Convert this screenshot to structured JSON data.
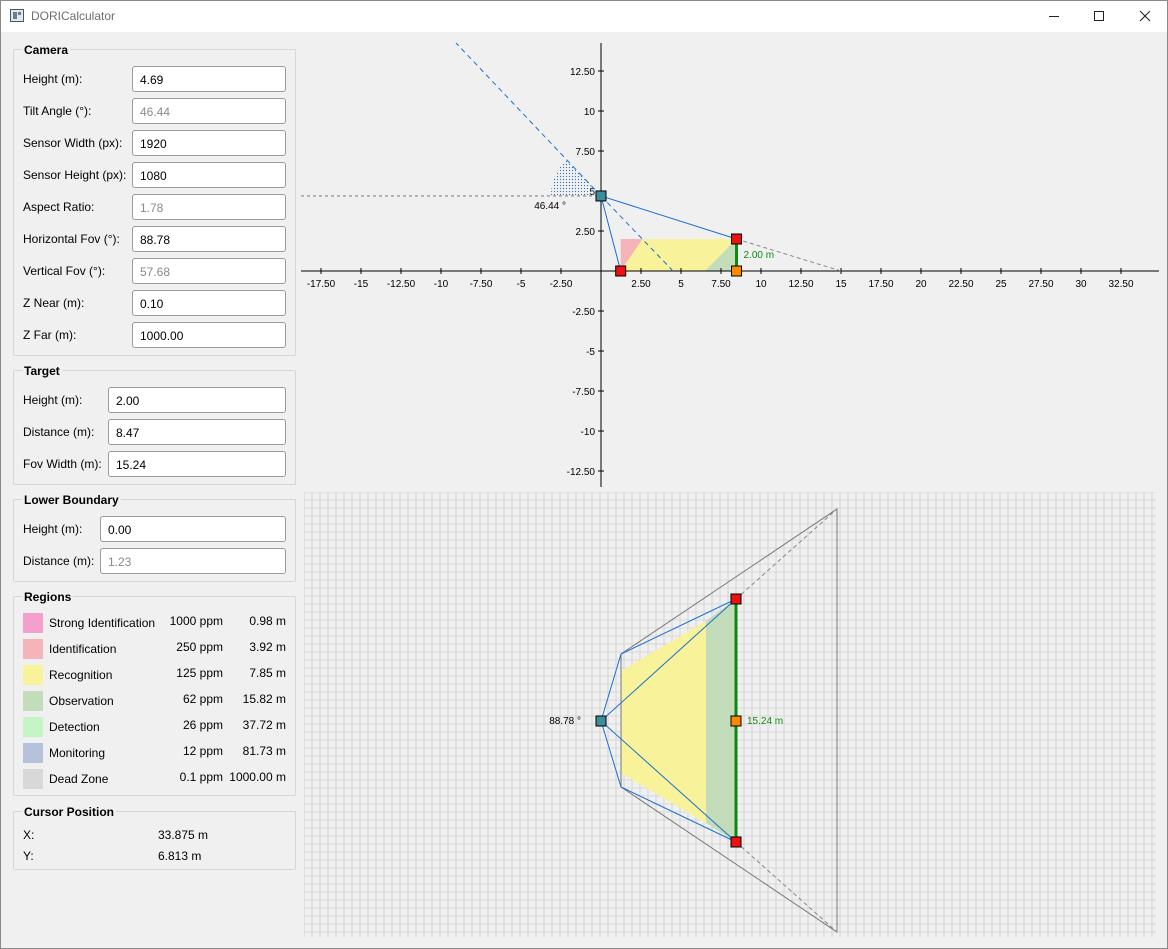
{
  "window": {
    "title": "DORICalculator"
  },
  "camera": {
    "title": "Camera",
    "fields": [
      {
        "label": "Height (m):",
        "value": "4.69",
        "readonly": false
      },
      {
        "label": "Tilt Angle (°):",
        "value": "46.44",
        "readonly": true
      },
      {
        "label": "Sensor Width (px):",
        "value": "1920",
        "readonly": false
      },
      {
        "label": "Sensor Height (px):",
        "value": "1080",
        "readonly": false
      },
      {
        "label": "Aspect Ratio:",
        "value": "1.78",
        "readonly": true
      },
      {
        "label": "Horizontal Fov (°):",
        "value": "88.78",
        "readonly": false
      },
      {
        "label": "Vertical Fov (°):",
        "value": "57.68",
        "readonly": true
      },
      {
        "label": "Z Near (m):",
        "value": "0.10",
        "readonly": false
      },
      {
        "label": "Z Far (m):",
        "value": "1000.00",
        "readonly": false
      }
    ]
  },
  "target": {
    "title": "Target",
    "fields": [
      {
        "label": "Height (m):",
        "value": "2.00",
        "readonly": false
      },
      {
        "label": "Distance (m):",
        "value": "8.47",
        "readonly": false
      },
      {
        "label": "Fov Width (m):",
        "value": "15.24",
        "readonly": false
      }
    ]
  },
  "lower_boundary": {
    "title": "Lower Boundary",
    "fields": [
      {
        "label": "Height (m):",
        "value": "0.00",
        "readonly": false
      },
      {
        "label": "Distance (m):",
        "value": "1.23",
        "readonly": true
      }
    ]
  },
  "regions": {
    "title": "Regions",
    "items": [
      {
        "name": "Strong Identification",
        "ppm": "1000 ppm",
        "dist": "0.98 m",
        "color": "#f5a0cc"
      },
      {
        "name": "Identification",
        "ppm": "250 ppm",
        "dist": "3.92 m",
        "color": "#f5b5b8"
      },
      {
        "name": "Recognition",
        "ppm": "125 ppm",
        "dist": "7.85 m",
        "color": "#f8f39a"
      },
      {
        "name": "Observation",
        "ppm": "62 ppm",
        "dist": "15.82 m",
        "color": "#c3dcba"
      },
      {
        "name": "Detection",
        "ppm": "26 ppm",
        "dist": "37.72 m",
        "color": "#c5f5c5"
      },
      {
        "name": "Monitoring",
        "ppm": "12 ppm",
        "dist": "81.73 m",
        "color": "#b6c1dc"
      },
      {
        "name": "Dead Zone",
        "ppm": "0.1 ppm",
        "dist": "1000.00 m",
        "color": "#d8d8d8"
      }
    ]
  },
  "cursor": {
    "title": "Cursor Position",
    "x_label": "X:",
    "x_value": "33.875 m",
    "y_label": "Y:",
    "y_value": "6.813 m"
  },
  "side_view": {
    "angle_label": "46.44 °",
    "target_height_label": "2.00 m",
    "x_ticks": [
      -17.5,
      -15,
      -12.5,
      -10,
      -7.5,
      -5,
      -2.5,
      2.5,
      5,
      7.5,
      10,
      12.5,
      15,
      17.5,
      20,
      22.5,
      25,
      27.5,
      30,
      32.5
    ],
    "y_ticks": [
      12.5,
      10,
      7.5,
      5,
      2.5,
      -2.5,
      -5,
      -7.5,
      -10,
      -12.5
    ],
    "camera": {
      "x": 0,
      "y": 4.69
    },
    "target": {
      "x": 8.47,
      "height": 2.0
    },
    "lower_boundary_x": 1.23
  },
  "top_view": {
    "angle_label": "88.78 °",
    "fov_width_label": "15.24 m"
  },
  "colors": {
    "camera_marker": "#3b8d9c",
    "handle": "#ee1111",
    "target_base": "#ff8800",
    "frustum_line": "#1a6fd1",
    "target_line": "#118811"
  }
}
